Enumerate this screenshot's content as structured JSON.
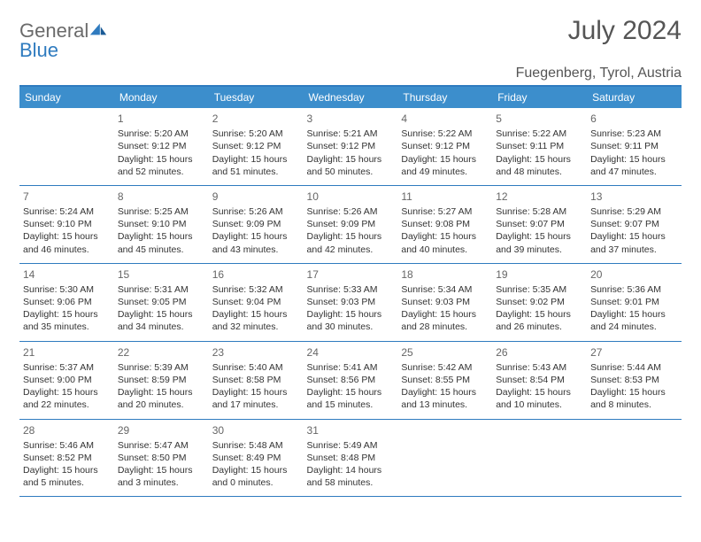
{
  "brand": {
    "word1": "General",
    "word2": "Blue"
  },
  "title": "July 2024",
  "location": "Fuegenberg, Tyrol, Austria",
  "colors": {
    "header_bg": "#3c8ecc",
    "rule": "#2f7bbf",
    "text": "#333333",
    "muted": "#666666",
    "background": "#ffffff"
  },
  "weekdays": [
    "Sunday",
    "Monday",
    "Tuesday",
    "Wednesday",
    "Thursday",
    "Friday",
    "Saturday"
  ],
  "weeks": [
    [
      null,
      {
        "n": "1",
        "sr": "Sunrise: 5:20 AM",
        "ss": "Sunset: 9:12 PM",
        "dl": "Daylight: 15 hours and 52 minutes."
      },
      {
        "n": "2",
        "sr": "Sunrise: 5:20 AM",
        "ss": "Sunset: 9:12 PM",
        "dl": "Daylight: 15 hours and 51 minutes."
      },
      {
        "n": "3",
        "sr": "Sunrise: 5:21 AM",
        "ss": "Sunset: 9:12 PM",
        "dl": "Daylight: 15 hours and 50 minutes."
      },
      {
        "n": "4",
        "sr": "Sunrise: 5:22 AM",
        "ss": "Sunset: 9:12 PM",
        "dl": "Daylight: 15 hours and 49 minutes."
      },
      {
        "n": "5",
        "sr": "Sunrise: 5:22 AM",
        "ss": "Sunset: 9:11 PM",
        "dl": "Daylight: 15 hours and 48 minutes."
      },
      {
        "n": "6",
        "sr": "Sunrise: 5:23 AM",
        "ss": "Sunset: 9:11 PM",
        "dl": "Daylight: 15 hours and 47 minutes."
      }
    ],
    [
      {
        "n": "7",
        "sr": "Sunrise: 5:24 AM",
        "ss": "Sunset: 9:10 PM",
        "dl": "Daylight: 15 hours and 46 minutes."
      },
      {
        "n": "8",
        "sr": "Sunrise: 5:25 AM",
        "ss": "Sunset: 9:10 PM",
        "dl": "Daylight: 15 hours and 45 minutes."
      },
      {
        "n": "9",
        "sr": "Sunrise: 5:26 AM",
        "ss": "Sunset: 9:09 PM",
        "dl": "Daylight: 15 hours and 43 minutes."
      },
      {
        "n": "10",
        "sr": "Sunrise: 5:26 AM",
        "ss": "Sunset: 9:09 PM",
        "dl": "Daylight: 15 hours and 42 minutes."
      },
      {
        "n": "11",
        "sr": "Sunrise: 5:27 AM",
        "ss": "Sunset: 9:08 PM",
        "dl": "Daylight: 15 hours and 40 minutes."
      },
      {
        "n": "12",
        "sr": "Sunrise: 5:28 AM",
        "ss": "Sunset: 9:07 PM",
        "dl": "Daylight: 15 hours and 39 minutes."
      },
      {
        "n": "13",
        "sr": "Sunrise: 5:29 AM",
        "ss": "Sunset: 9:07 PM",
        "dl": "Daylight: 15 hours and 37 minutes."
      }
    ],
    [
      {
        "n": "14",
        "sr": "Sunrise: 5:30 AM",
        "ss": "Sunset: 9:06 PM",
        "dl": "Daylight: 15 hours and 35 minutes."
      },
      {
        "n": "15",
        "sr": "Sunrise: 5:31 AM",
        "ss": "Sunset: 9:05 PM",
        "dl": "Daylight: 15 hours and 34 minutes."
      },
      {
        "n": "16",
        "sr": "Sunrise: 5:32 AM",
        "ss": "Sunset: 9:04 PM",
        "dl": "Daylight: 15 hours and 32 minutes."
      },
      {
        "n": "17",
        "sr": "Sunrise: 5:33 AM",
        "ss": "Sunset: 9:03 PM",
        "dl": "Daylight: 15 hours and 30 minutes."
      },
      {
        "n": "18",
        "sr": "Sunrise: 5:34 AM",
        "ss": "Sunset: 9:03 PM",
        "dl": "Daylight: 15 hours and 28 minutes."
      },
      {
        "n": "19",
        "sr": "Sunrise: 5:35 AM",
        "ss": "Sunset: 9:02 PM",
        "dl": "Daylight: 15 hours and 26 minutes."
      },
      {
        "n": "20",
        "sr": "Sunrise: 5:36 AM",
        "ss": "Sunset: 9:01 PM",
        "dl": "Daylight: 15 hours and 24 minutes."
      }
    ],
    [
      {
        "n": "21",
        "sr": "Sunrise: 5:37 AM",
        "ss": "Sunset: 9:00 PM",
        "dl": "Daylight: 15 hours and 22 minutes."
      },
      {
        "n": "22",
        "sr": "Sunrise: 5:39 AM",
        "ss": "Sunset: 8:59 PM",
        "dl": "Daylight: 15 hours and 20 minutes."
      },
      {
        "n": "23",
        "sr": "Sunrise: 5:40 AM",
        "ss": "Sunset: 8:58 PM",
        "dl": "Daylight: 15 hours and 17 minutes."
      },
      {
        "n": "24",
        "sr": "Sunrise: 5:41 AM",
        "ss": "Sunset: 8:56 PM",
        "dl": "Daylight: 15 hours and 15 minutes."
      },
      {
        "n": "25",
        "sr": "Sunrise: 5:42 AM",
        "ss": "Sunset: 8:55 PM",
        "dl": "Daylight: 15 hours and 13 minutes."
      },
      {
        "n": "26",
        "sr": "Sunrise: 5:43 AM",
        "ss": "Sunset: 8:54 PM",
        "dl": "Daylight: 15 hours and 10 minutes."
      },
      {
        "n": "27",
        "sr": "Sunrise: 5:44 AM",
        "ss": "Sunset: 8:53 PM",
        "dl": "Daylight: 15 hours and 8 minutes."
      }
    ],
    [
      {
        "n": "28",
        "sr": "Sunrise: 5:46 AM",
        "ss": "Sunset: 8:52 PM",
        "dl": "Daylight: 15 hours and 5 minutes."
      },
      {
        "n": "29",
        "sr": "Sunrise: 5:47 AM",
        "ss": "Sunset: 8:50 PM",
        "dl": "Daylight: 15 hours and 3 minutes."
      },
      {
        "n": "30",
        "sr": "Sunrise: 5:48 AM",
        "ss": "Sunset: 8:49 PM",
        "dl": "Daylight: 15 hours and 0 minutes."
      },
      {
        "n": "31",
        "sr": "Sunrise: 5:49 AM",
        "ss": "Sunset: 8:48 PM",
        "dl": "Daylight: 14 hours and 58 minutes."
      },
      null,
      null,
      null
    ]
  ]
}
